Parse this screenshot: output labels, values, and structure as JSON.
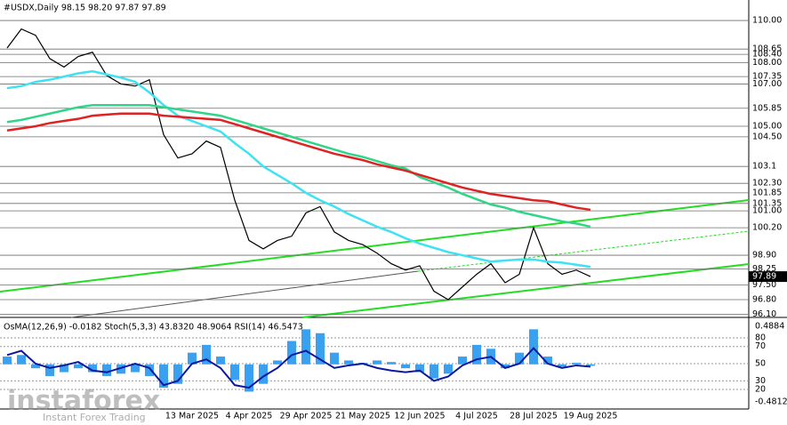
{
  "chart_data": [
    {
      "type": "line",
      "title": "#USDX,Daily  98.15 98.20 97.87 97.89",
      "categories": [
        null,
        null,
        null,
        null,
        null,
        null,
        null,
        null,
        null,
        null,
        null,
        null,
        null,
        "13 Mar 2025",
        null,
        null,
        null,
        "4 Apr 2025",
        null,
        null,
        null,
        "29 Apr 2025",
        null,
        null,
        null,
        "21 May 2025",
        null,
        null,
        null,
        "12 Jun 2025",
        null,
        null,
        null,
        "4 Jul 2025",
        null,
        null,
        null,
        "28 Jul 2025",
        null,
        null,
        null,
        "19 Aug 2025",
        null,
        null,
        null,
        null,
        null,
        null,
        null,
        null,
        null,
        null
      ],
      "series": [
        {
          "color": "#000000",
          "values": [
            108.7,
            109.6,
            109.3,
            108.2,
            107.8,
            108.3,
            108.5,
            107.4,
            107.0,
            106.9,
            107.2,
            104.6,
            103.5,
            103.7,
            104.3,
            104.0,
            101.5,
            99.6,
            99.2,
            99.6,
            99.8,
            100.9,
            101.2,
            100.0,
            99.6,
            99.4,
            99.0,
            98.5,
            98.2,
            98.4,
            97.2,
            96.8,
            97.4,
            98.0,
            98.5,
            97.6,
            98.0,
            100.2,
            98.5,
            98.0,
            98.2,
            97.89,
            null,
            null,
            null,
            null,
            null,
            null,
            null,
            null,
            null,
            null
          ]
        },
        {
          "color": "#3de3f2",
          "values": [
            106.8,
            106.9,
            107.1,
            107.2,
            107.35,
            107.5,
            107.6,
            107.45,
            107.3,
            107.1,
            106.6,
            106.0,
            105.5,
            105.25,
            105.0,
            104.75,
            104.2,
            103.7,
            103.1,
            102.7,
            102.3,
            101.85,
            101.5,
            101.2,
            100.85,
            100.55,
            100.25,
            100.0,
            99.7,
            99.45,
            99.25,
            99.05,
            98.9,
            98.75,
            98.6,
            98.65,
            98.7,
            98.7,
            98.6,
            98.55,
            98.45,
            98.35,
            null,
            null,
            null,
            null,
            null,
            null,
            null,
            null,
            null,
            null
          ]
        },
        {
          "color": "#2fd68a",
          "values": [
            105.2,
            105.3,
            105.45,
            105.6,
            105.75,
            105.9,
            106.0,
            106.0,
            106.0,
            106.0,
            106.0,
            105.9,
            105.8,
            105.7,
            105.6,
            105.5,
            105.3,
            105.1,
            104.9,
            104.7,
            104.5,
            104.3,
            104.1,
            103.9,
            103.7,
            103.55,
            103.35,
            103.15,
            103.0,
            102.6,
            102.35,
            102.1,
            101.8,
            101.55,
            101.3,
            101.15,
            100.95,
            100.8,
            100.65,
            100.5,
            100.4,
            100.25,
            null,
            null,
            null,
            null,
            null,
            null,
            null,
            null,
            null,
            null
          ]
        },
        {
          "color": "#e02222",
          "values": [
            104.8,
            104.9,
            105.0,
            105.15,
            105.25,
            105.35,
            105.5,
            105.55,
            105.6,
            105.6,
            105.6,
            105.5,
            105.45,
            105.4,
            105.35,
            105.3,
            105.1,
            104.9,
            104.7,
            104.5,
            104.3,
            104.1,
            103.9,
            103.7,
            103.55,
            103.4,
            103.2,
            103.05,
            102.9,
            102.7,
            102.5,
            102.3,
            102.1,
            101.95,
            101.8,
            101.7,
            101.6,
            101.5,
            101.45,
            101.3,
            101.15,
            101.05,
            null,
            null,
            null,
            null,
            null,
            null,
            null,
            null,
            null,
            null
          ]
        }
      ],
      "ylim": [
        95.96,
        110.97
      ],
      "yticks": [
        {
          "value": 110,
          "label": "110.00"
        },
        108.65,
        {
          "value": 108.4,
          "label": "108.40"
        },
        {
          "value": 108,
          "label": "108.00"
        },
        107.35,
        {
          "value": 107,
          "label": "107.00"
        },
        105.85,
        {
          "value": 105,
          "label": "105.00"
        },
        {
          "value": 104.5,
          "label": "104.50"
        },
        103.1,
        {
          "value": 102.3,
          "label": "102.30"
        },
        101.85,
        101.35,
        {
          "value": 101,
          "label": "101.00"
        },
        {
          "value": 100.2,
          "label": "100.20"
        },
        {
          "value": 98.9,
          "label": "98.90"
        },
        98.25,
        {
          "value": 97.5,
          "label": "97.50"
        },
        {
          "value": 96.8,
          "label": "96.80"
        },
        {
          "value": 96.1,
          "label": "96.10"
        }
      ],
      "last_price": 97.89,
      "grid": true
    },
    {
      "type": "indicator",
      "title": "OsMA(12,26,9) -0.0182  Stoch(5,3,3) 43.8320 48.9064  RSI(14) 46.5473",
      "series": [
        {
          "type": "bar",
          "color": "#3aa0f0",
          "values": [
            0.1,
            0.12,
            -0.05,
            -0.15,
            -0.1,
            -0.05,
            -0.1,
            -0.15,
            -0.12,
            -0.1,
            -0.15,
            -0.3,
            -0.25,
            0.15,
            0.25,
            0.1,
            -0.2,
            -0.35,
            -0.25,
            0.05,
            0.3,
            0.45,
            0.4,
            0.15,
            0.05,
            0.02,
            0.05,
            0.03,
            -0.05,
            -0.1,
            -0.18,
            -0.12,
            0.1,
            0.25,
            0.2,
            -0.05,
            0.15,
            0.45,
            0.1,
            -0.03,
            0.02,
            -0.0182
          ]
        },
        {
          "type": "line",
          "axis": "y2",
          "color": "#0a1aa0",
          "values": [
            60,
            65,
            50,
            45,
            48,
            52,
            42,
            40,
            45,
            50,
            45,
            25,
            30,
            50,
            55,
            45,
            25,
            22,
            35,
            45,
            60,
            65,
            55,
            45,
            48,
            50,
            45,
            42,
            40,
            42,
            30,
            35,
            48,
            55,
            58,
            45,
            50,
            68,
            50,
            45,
            48,
            46.5473
          ]
        }
      ],
      "ylim": [
        -0.55,
        0.591
      ],
      "yticks": [
        0.4884,
        -0.4812
      ],
      "y2lim": [
        -0.7,
        102.8
      ],
      "y2ticks": [
        80,
        70,
        50,
        30,
        20
      ]
    },
    {
      "type": "watermark",
      "brand": "instaforex",
      "tagline": "Instant Forex Trading"
    }
  ]
}
